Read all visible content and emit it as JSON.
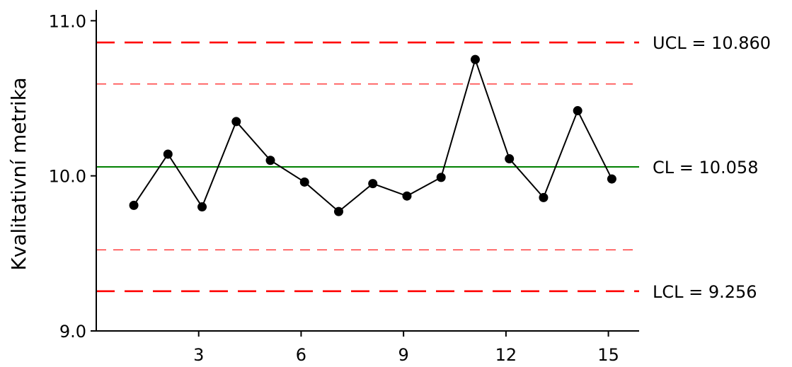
{
  "chart_data": {
    "type": "line",
    "title": "",
    "xlabel": "",
    "ylabel": "Kvalitativní metrika",
    "xlim": [
      0.0,
      15.9
    ],
    "ylim": [
      9.0,
      11.07
    ],
    "x_ticks": [
      3,
      6,
      9,
      12,
      15
    ],
    "y_ticks": [
      9.0,
      10.0,
      11.0
    ],
    "y_tick_labels": [
      "9.0",
      "10.0",
      "11.0"
    ],
    "grid": false,
    "series": [
      {
        "x": [
          1.1,
          2.1,
          3.1,
          4.1,
          5.1,
          6.1,
          7.1,
          8.1,
          9.1,
          10.1,
          11.1,
          12.1,
          13.1,
          14.1,
          15.1
        ],
        "values": [
          9.81,
          10.14,
          9.8,
          10.35,
          10.1,
          9.96,
          9.77,
          9.95,
          9.87,
          9.99,
          10.75,
          10.11,
          9.86,
          10.42,
          9.98
        ],
        "color": "#000000"
      }
    ],
    "control_lines": [
      {
        "name": "ucl",
        "value": 10.86,
        "label": "UCL = 10.860",
        "color": "#ff0000",
        "style": "long-dash"
      },
      {
        "name": "upper-warning",
        "value": 10.592,
        "label": "",
        "color": "#ff0000",
        "style": "thin-dash"
      },
      {
        "name": "cl",
        "value": 10.058,
        "label": "CL = 10.058",
        "color": "#008000",
        "style": "solid"
      },
      {
        "name": "lower-warning",
        "value": 9.523,
        "label": "",
        "color": "#ff0000",
        "style": "thin-dash"
      },
      {
        "name": "lcl",
        "value": 9.256,
        "label": "LCL = 9.256",
        "color": "#ff0000",
        "style": "long-dash"
      }
    ]
  }
}
